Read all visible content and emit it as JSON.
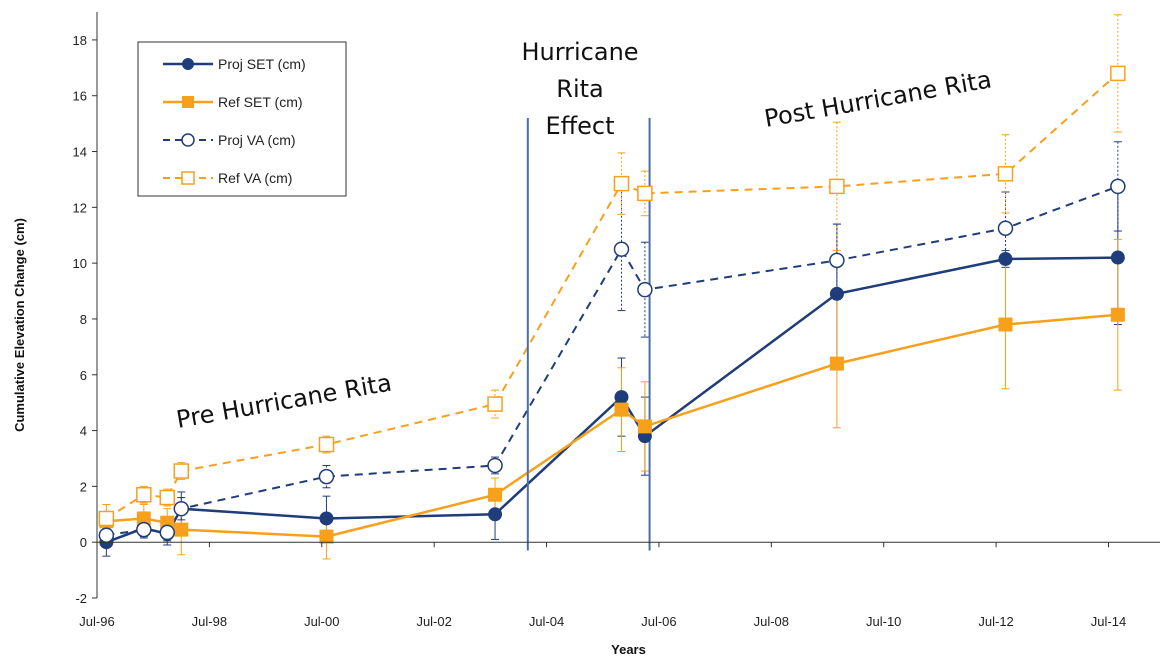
{
  "chart_data": {
    "type": "line",
    "xlabel": "Years",
    "ylabel": "Cumulative Elevation Change (cm)",
    "ylim": [
      -2,
      19
    ],
    "yticks": [
      -2,
      0,
      2,
      4,
      6,
      8,
      10,
      12,
      14,
      16,
      18
    ],
    "x_tick_labels": [
      "Jul-96",
      "Jul-98",
      "Jul-00",
      "Jul-02",
      "Jul-04",
      "Jul-06",
      "Jul-08",
      "Jul-10",
      "Jul-12",
      "Jul-14"
    ],
    "x_tick_values": [
      "1996-07",
      "1998-07",
      "2000-07",
      "2002-07",
      "2004-07",
      "2006-07",
      "2008-07",
      "2010-07",
      "2012-07",
      "2014-07"
    ],
    "xlim": [
      "1996-07",
      "2015-06"
    ],
    "grid": false,
    "legend_position": "top-left",
    "series": [
      {
        "name": "Proj SET (cm)",
        "color": "#1f3d7a",
        "style": "solid",
        "marker": "filled-circle",
        "x": [
          "1996-09",
          "1997-05",
          "1997-10",
          "1998-01",
          "2000-08",
          "2003-08",
          "2005-11",
          "2006-04",
          "2009-09",
          "2012-09",
          "2014-09"
        ],
        "y": [
          0.0,
          0.5,
          0.3,
          1.2,
          0.85,
          1.0,
          5.2,
          3.8,
          8.9,
          10.15,
          10.2
        ],
        "err": [
          0.5,
          0.3,
          0.4,
          0.6,
          0.8,
          0.9,
          1.4,
          1.4,
          2.5,
          0.3,
          2.4
        ]
      },
      {
        "name": "Ref SET (cm)",
        "color": "#f7a01c",
        "style": "solid",
        "marker": "filled-square",
        "x": [
          "1996-09",
          "1997-05",
          "1997-10",
          "1998-01",
          "2000-08",
          "2003-08",
          "2005-11",
          "2006-04",
          "2009-09",
          "2012-09",
          "2014-09"
        ],
        "y": [
          0.75,
          0.85,
          0.7,
          0.45,
          0.2,
          1.7,
          4.75,
          4.15,
          6.4,
          7.8,
          8.15
        ],
        "err": [
          0.6,
          0.5,
          0.5,
          0.9,
          0.8,
          0.6,
          1.5,
          1.6,
          2.3,
          2.3,
          2.7
        ]
      },
      {
        "name": "Proj VA (cm)",
        "color": "#1f3d7a",
        "style": "dashed",
        "marker": "open-circle",
        "x": [
          "1996-09",
          "1997-05",
          "1997-10",
          "1998-01",
          "2000-08",
          "2003-08",
          "2005-11",
          "2006-04",
          "2009-09",
          "2012-09",
          "2014-09"
        ],
        "y": [
          0.25,
          0.45,
          0.35,
          1.2,
          2.35,
          2.75,
          10.5,
          9.05,
          10.1,
          11.25,
          12.75
        ],
        "err": [
          0.3,
          0.3,
          0.3,
          0.4,
          0.4,
          0.3,
          2.2,
          1.7,
          1.3,
          1.3,
          1.6
        ]
      },
      {
        "name": "Ref VA (cm)",
        "color": "#f7a01c",
        "style": "dashed",
        "marker": "open-square",
        "x": [
          "1996-09",
          "1997-05",
          "1997-10",
          "1998-01",
          "2000-08",
          "2003-08",
          "2005-11",
          "2006-04",
          "2009-09",
          "2012-09",
          "2014-09"
        ],
        "y": [
          0.85,
          1.7,
          1.6,
          2.55,
          3.5,
          4.95,
          12.85,
          12.5,
          12.75,
          13.2,
          16.8
        ],
        "err": [
          0.5,
          0.3,
          0.3,
          0.3,
          0.3,
          0.5,
          1.1,
          0.8,
          2.3,
          1.4,
          2.1
        ]
      }
    ],
    "dividers": [
      "2004-03",
      "2006-05"
    ],
    "annotations": {
      "pre": "Pre Hurricane Rita",
      "effect": [
        "Hurricane",
        "Rita",
        "Effect"
      ],
      "post": "Post Hurricane Rita"
    },
    "colors": {
      "navy": "#1f3d7a",
      "orange": "#f7a01c",
      "divider": "#4a6fa5",
      "axis": "#333333"
    }
  }
}
